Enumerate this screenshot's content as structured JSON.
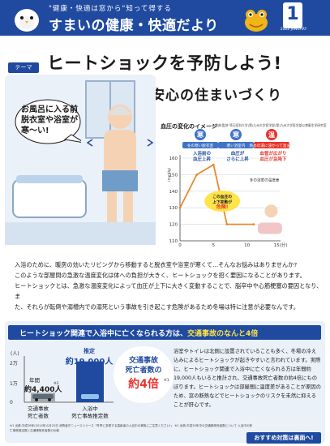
{
  "header": {
    "tagline": "\"健康・快適は窓から\"知って得する",
    "title": "すまいの健康・快適だより",
    "issue_number": "1",
    "issue_date": "2022 JANUARY"
  },
  "theme": {
    "tag": "テーマ",
    "headline": "ヒートショックを予防しよう!",
    "subheadline": "安心の住まいづくり"
  },
  "illustration": {
    "speech": [
      "お風呂に入る前",
      "脱衣室や浴室が",
      "寒～い!"
    ]
  },
  "chart_data": {
    "type": "line",
    "title": "血圧の変化のイメージ",
    "source": "※出典:監修 埼玉医科大学(第)九州大学医学部(第)九州大学医学部公衆衛生学研究室",
    "ylabel": "(mmHg)",
    "xlabel": "15(分)",
    "x_ticks": [
      0,
      5,
      10,
      15
    ],
    "y_ticks": [
      110,
      120,
      130,
      140,
      150,
      160
    ],
    "ylim": [
      110,
      160
    ],
    "xlim": [
      0,
      15
    ],
    "stages": [
      {
        "name": "寒",
        "caption": "冬の寒い脱衣室",
        "note": "入浴前の\n血圧上昇"
      },
      {
        "name": "寒",
        "caption": "寒い浴室内",
        "note": "血圧が\nさらに上昇"
      },
      {
        "name": "温",
        "caption": "熱めの湯に浸かって温まる",
        "note": "血管が広がり\n血圧が急降下"
      }
    ],
    "series": [
      {
        "x": [
          0,
          2.5,
          5,
          7,
          11
        ],
        "y": [
          130,
          150,
          156,
          120,
          120
        ]
      }
    ],
    "annotation": [
      "この血圧の",
      "上下変動が",
      "危険!"
    ],
    "temp_label": "冬の浴室の温度差"
  },
  "intro": [
    "入浴のために、暖房の効いたリビングから移動すると脱衣室や浴室が寒くて…そんなお悩みはありませんか?",
    "このような部屋間の急激な温度変化は体への負担が大きく、ヒートショックを招く要因になることがあります。",
    "ヒートショックとは、急激な温度変化によって血圧が上下に大きく変動することで、脳卒中や心筋梗塞の要因となり、ま",
    "た、それらが転倒や溺槽内での溺死という事故を引き起こす危険があるため冬場は特に注意が必要なんです。"
  ],
  "stats": {
    "heading_prefix": "ヒートショック関連で入浴中に亡くなられる方は、",
    "heading_highlight": "交通事故のなんと4倍",
    "y_unit": "(人)",
    "y_ticks": [
      "2万",
      "1万",
      "0"
    ],
    "estimate_label": "推定",
    "estimate_value": "約19,000人",
    "annual_label": "年間",
    "annual_value": "約4,400人",
    "annual_note": "※2",
    "category_traffic": [
      "交通事故",
      "死亡者数"
    ],
    "category_bath": [
      "入浴中",
      "死亡事故推定数"
    ],
    "bar_traffic": 4400,
    "bar_bath": 19000,
    "callout": [
      "交通事故",
      "死亡者数の",
      "約4倍"
    ],
    "callout_note": "※1",
    "text": "浴室やトイレは北側に設置されていることも多く、冬場の冷え込みによるヒートショックが起きやすいと言われています。実際に、ヒートショック関連で入浴中に亡くなられる方は年間約19,000人もいると推計され、交通事故死亡者数の約4倍にものぼります。ヒートショックは部屋間に温度差があることが原因のため、窓の断熱などでヒートショックのリスクを未然に抑えることが肝心です。",
    "footnote": "※1 出典:平成26年(2014年)1月23日 消費者庁ニュースリリース「冬季に多発する高齢者の入浴中の事故にご注意ください!」 ※2 出典:平成30年中の交通事故死者数について 入浴中の死亡事故推定数と交通事故死者数の比較",
    "cta": "おすすめ対策は裏面へ!"
  }
}
